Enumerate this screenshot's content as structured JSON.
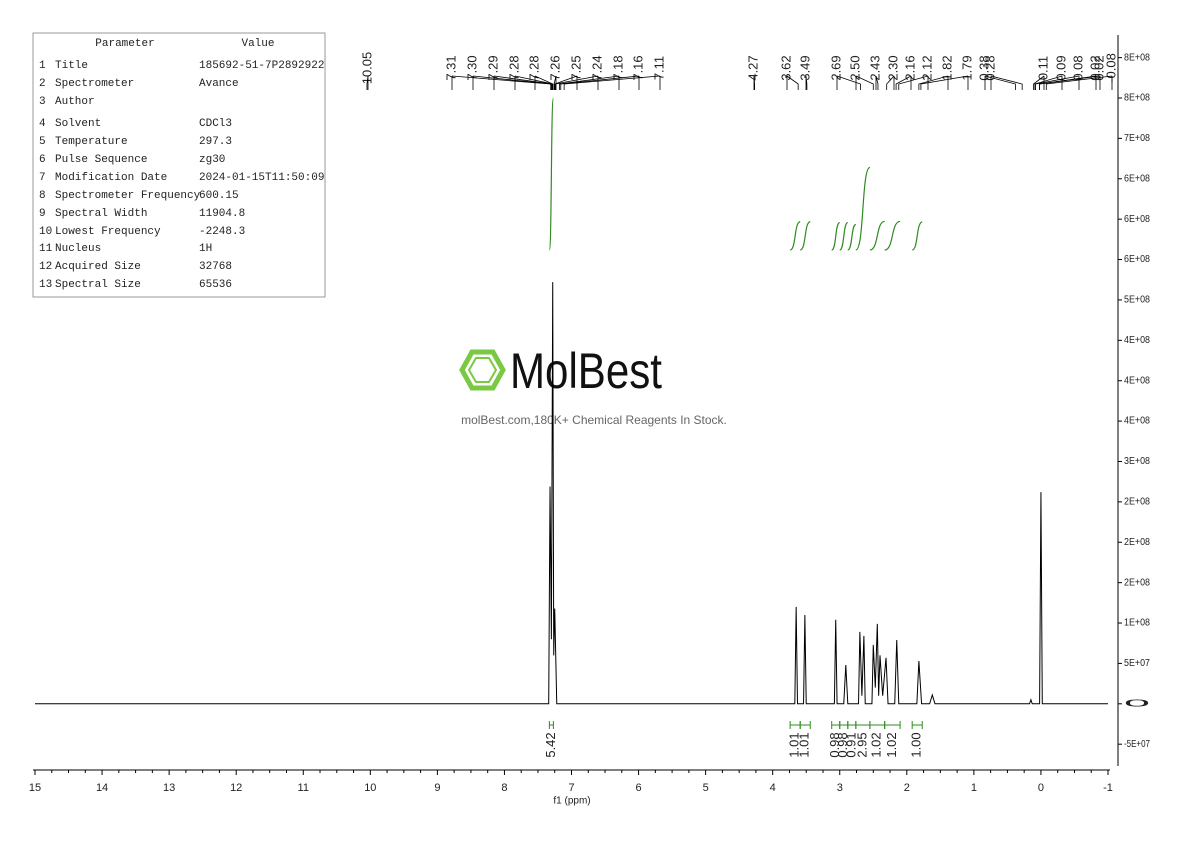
{
  "parameters_table": {
    "header": [
      "Parameter",
      "Value"
    ],
    "rows": [
      {
        "n": "1",
        "parameter": "Title",
        "value": "185692-51-7P2892922"
      },
      {
        "n": "2",
        "parameter": "Spectrometer",
        "value": "Avance"
      },
      {
        "n": "3",
        "parameter": "Author"
      },
      {
        "n": "4",
        "parameter": "Solvent",
        "value": "CDCl3"
      },
      {
        "n": "5",
        "parameter": "Temperature",
        "value": "297.3"
      },
      {
        "n": "6",
        "parameter": "Pulse Sequence",
        "value": "zg30"
      },
      {
        "n": "7",
        "parameter": "Modification Date",
        "value": "2024-01-15T11:50:09"
      },
      {
        "n": "8",
        "parameter": "Spectrometer Frequency",
        "value": "600.15"
      },
      {
        "n": "9",
        "parameter": "Spectral Width",
        "value": "11904.8"
      },
      {
        "n": "10",
        "parameter": "Lowest Frequency",
        "value": "-2248.3"
      },
      {
        "n": "11",
        "parameter": "Nucleus",
        "value": "1H"
      },
      {
        "n": "12",
        "parameter": "Acquired Size",
        "value": "32768"
      },
      {
        "n": "13",
        "parameter": "Spectral Size",
        "value": "65536"
      }
    ]
  },
  "watermark": {
    "logo": "MolBest",
    "tagline": "molBest.com,180K+ Chemical Reagents In Stock."
  },
  "chart_data": {
    "type": "nmr",
    "x_label": "f1 (ppm)",
    "color": "#000000",
    "integral_color": "#2e8b1f",
    "xlim": [
      15,
      -1
    ],
    "xticks": [
      15,
      14,
      13,
      12,
      11,
      10,
      9,
      8,
      7,
      6,
      5,
      4,
      3,
      2,
      1,
      0,
      -1
    ],
    "ylim": [
      -77000000,
      828000000
    ],
    "yticks": [
      {
        "value": 800000000,
        "label": "8E+08"
      },
      {
        "value": 750000000,
        "label": "8E+08"
      },
      {
        "value": 700000000,
        "label": "7E+08"
      },
      {
        "value": 650000000,
        "label": "6E+08"
      },
      {
        "value": 600000000,
        "label": "6E+08"
      },
      {
        "value": 550000000,
        "label": "6E+08"
      },
      {
        "value": 500000000,
        "label": "5E+08"
      },
      {
        "value": 450000000,
        "label": "4E+08"
      },
      {
        "value": 400000000,
        "label": "4E+08"
      },
      {
        "value": 350000000,
        "label": "4E+08"
      },
      {
        "value": 300000000,
        "label": "3E+08"
      },
      {
        "value": 250000000,
        "label": "2E+08"
      },
      {
        "value": 200000000,
        "label": "2E+08"
      },
      {
        "value": 150000000,
        "label": "2E+08"
      },
      {
        "value": 100000000,
        "label": "1E+08"
      },
      {
        "value": 50000000,
        "label": "5E+07"
      },
      0,
      {
        "value": -50000000,
        "label": "-5E+07"
      }
    ],
    "x": [
      15,
      7.34,
      7.32,
      7.3,
      7.28,
      7.265,
      7.25,
      7.22,
      3.67,
      3.65,
      3.63,
      3.54,
      3.52,
      3.5,
      3.08,
      3.06,
      3.04,
      2.94,
      2.91,
      2.88,
      2.72,
      2.7,
      2.67,
      2.64,
      2.62,
      2.52,
      2.5,
      2.47,
      2.44,
      2.42,
      2.4,
      2.36,
      2.31,
      2.28,
      2.18,
      2.15,
      2.12,
      1.85,
      1.82,
      1.78,
      1.66,
      1.62,
      1.58,
      0.17,
      0.15,
      0.13,
      0.02,
      0.0,
      -0.02,
      -1
    ],
    "values": [
      0,
      0,
      269000000,
      80000000,
      522000000,
      60000000,
      118000000,
      0,
      0,
      120000000,
      0,
      0,
      110000000,
      0,
      0,
      104000000,
      0,
      0,
      48000000,
      0,
      0,
      89000000,
      10000000,
      84000000,
      0,
      0,
      73000000,
      20000000,
      99000000,
      10000000,
      60000000,
      10000000,
      57000000,
      0,
      0,
      79000000,
      0,
      0,
      53000000,
      0,
      0,
      11000000,
      0,
      0,
      5000000,
      0,
      0,
      262000000,
      0,
      0
    ],
    "peak_labels": [
      "10.05",
      "7.31",
      "7.30",
      "7.29",
      "7.28",
      "7.28",
      "7.26",
      "7.25",
      "7.24",
      "7.18",
      "7.16",
      "7.11",
      "4.27",
      "3.62",
      "3.49",
      "2.69",
      "2.50",
      "2.43",
      "2.30",
      "2.16",
      "2.12",
      "1.82",
      "1.79",
      "0.38",
      "0.28",
      "0.11",
      "0.09",
      "0.08",
      "0.02",
      "0.02",
      "-0.08"
    ],
    "integrals": [
      {
        "value": 5.42,
        "from": 7.33,
        "to": 7.27
      },
      {
        "value": 1.01,
        "from": 3.74,
        "to": 3.59
      },
      {
        "value": 1.01,
        "from": 3.59,
        "to": 3.44
      },
      {
        "value": 0.98,
        "from": 3.12,
        "to": 3.0
      },
      {
        "value": 0.98,
        "from": 3.0,
        "to": 2.88
      },
      {
        "value": 0.91,
        "from": 2.88,
        "to": 2.76
      },
      {
        "value": 2.95,
        "from": 2.76,
        "to": 2.55
      },
      {
        "value": 1.02,
        "from": 2.55,
        "to": 2.33
      },
      {
        "value": 1.02,
        "from": 2.33,
        "to": 2.1
      },
      {
        "value": 1,
        "label": "1.00",
        "from": 1.92,
        "to": 1.77
      }
    ]
  }
}
